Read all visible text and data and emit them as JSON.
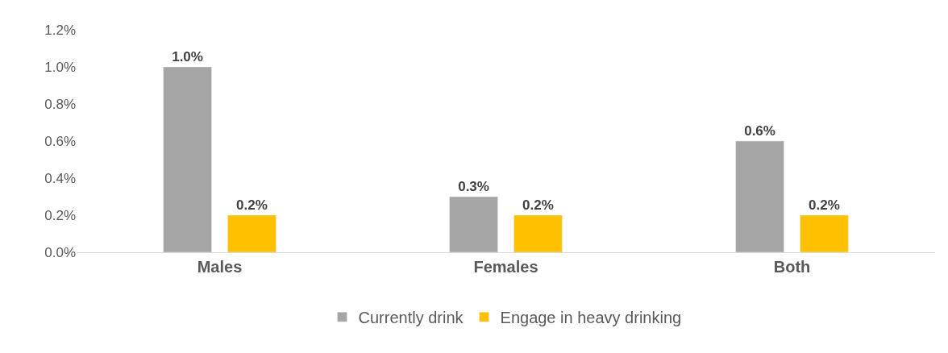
{
  "chart_data": {
    "type": "bar",
    "categories": [
      "Males",
      "Females",
      "Both"
    ],
    "series": [
      {
        "name": "Currently drink",
        "color": "#a5a5a5",
        "values": [
          1.0,
          0.3,
          0.6
        ],
        "value_labels": [
          "1.0%",
          "0.3%",
          "0.6%"
        ]
      },
      {
        "name": "Engage in heavy drinking",
        "color": "#ffc000",
        "values": [
          0.2,
          0.2,
          0.2
        ],
        "value_labels": [
          "0.2%",
          "0.2%",
          "0.2%"
        ]
      }
    ],
    "ylim": [
      0,
      1.2
    ],
    "yticks": [
      {
        "value": 0,
        "label": "0.0%"
      },
      {
        "value": 0.2,
        "label": "0.2%"
      },
      {
        "value": 0.4,
        "label": "0.4%"
      },
      {
        "value": 0.6,
        "label": "0.6%"
      },
      {
        "value": 0.8,
        "label": "0.8%"
      },
      {
        "value": 1.0,
        "label": "1.0%"
      },
      {
        "value": 1.2,
        "label": "1.2%"
      }
    ],
    "grid": false,
    "legend": "bottom"
  }
}
